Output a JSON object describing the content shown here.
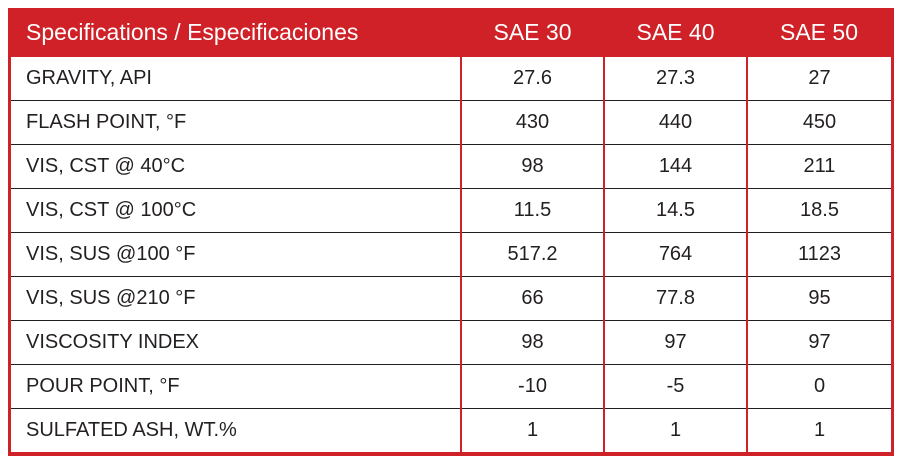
{
  "chart_data": {
    "type": "table",
    "title": "Specifications / Especificaciones",
    "columns": [
      "SAE 30",
      "SAE 40",
      "SAE 50"
    ],
    "rows": [
      {
        "label": "GRAVITY, API",
        "values": [
          "27.6",
          "27.3",
          "27"
        ]
      },
      {
        "label": "FLASH POINT, °F",
        "values": [
          "430",
          "440",
          "450"
        ]
      },
      {
        "label": "VIS, CST @ 40°C",
        "values": [
          "98",
          "144",
          "211"
        ]
      },
      {
        "label": "VIS, CST @ 100°C",
        "values": [
          "11.5",
          "14.5",
          "18.5"
        ]
      },
      {
        "label": "VIS, SUS @100 °F",
        "values": [
          "517.2",
          "764",
          "1123"
        ]
      },
      {
        "label": "VIS, SUS @210 °F",
        "values": [
          "66",
          "77.8",
          "95"
        ]
      },
      {
        "label": "VISCOSITY INDEX",
        "values": [
          "98",
          "97",
          "97"
        ]
      },
      {
        "label": "POUR POINT, °F",
        "values": [
          "-10",
          "-5",
          "0"
        ]
      },
      {
        "label": "SULFATED ASH, WT.%",
        "values": [
          "1",
          "1",
          "1"
        ]
      }
    ],
    "layout_hints": {
      "header_background": "#CF2127",
      "header_text_color": "#FFFFFF",
      "body_text_color": "#231F20",
      "outer_border_color": "#CF2127",
      "column_separator_color": "#CF2127",
      "row_separator_color": "#231F20",
      "background": "#FFFFFF",
      "grid": "on"
    }
  }
}
